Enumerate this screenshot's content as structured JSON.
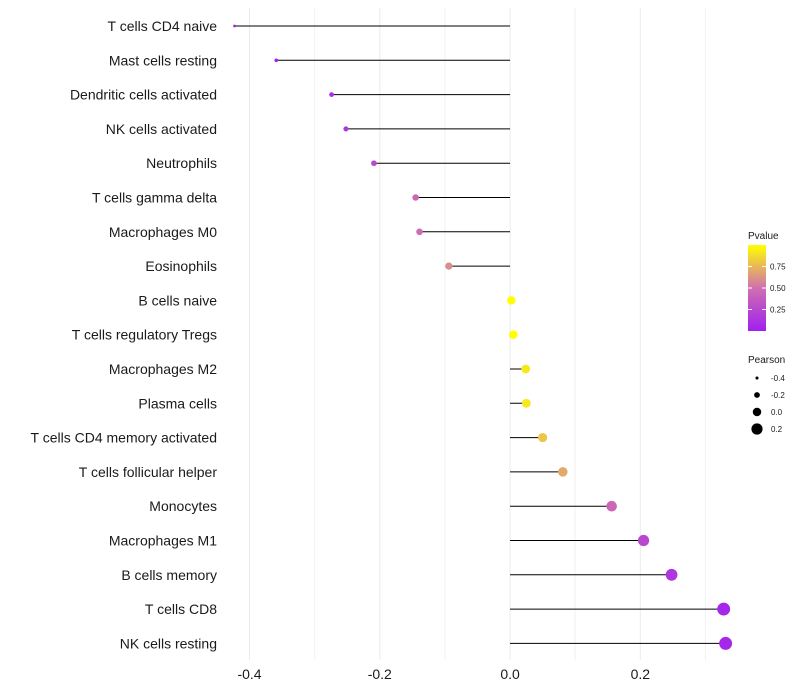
{
  "chart_data": {
    "type": "lollipop",
    "title": "",
    "xlabel": "",
    "ylabel": "",
    "xlim": [
      -0.43,
      0.35
    ],
    "x_ticks": [
      -0.4,
      -0.2,
      0.0,
      0.2
    ],
    "x_tick_labels": [
      "-0.4",
      "-0.2",
      "0.0",
      "0.2"
    ],
    "grid": "vertical",
    "categories": [
      "T cells CD4 naive",
      "Mast cells resting",
      "Dendritic cells activated",
      "NK cells activated",
      "Neutrophils",
      "T cells gamma delta",
      "Macrophages M0",
      "Eosinophils",
      "B cells naive",
      "T cells regulatory  Tregs",
      "Macrophages M2",
      "Plasma cells",
      "T cells CD4 memory activated",
      "T cells follicular helper",
      "Monocytes",
      "Macrophages M1",
      "B cells memory",
      "T cells CD8",
      "NK cells resting"
    ],
    "pearson": [
      -0.423,
      -0.359,
      -0.274,
      -0.252,
      -0.209,
      -0.145,
      -0.139,
      -0.094,
      0.002,
      0.005,
      0.024,
      0.025,
      0.05,
      0.081,
      0.156,
      0.205,
      0.248,
      0.328,
      0.331
    ],
    "pvalue": [
      0.0001,
      0.002,
      0.1,
      0.15,
      0.25,
      0.45,
      0.47,
      0.6,
      1.0,
      1.0,
      0.92,
      0.92,
      0.8,
      0.7,
      0.45,
      0.25,
      0.15,
      0.05,
      0.05
    ],
    "color_legend": {
      "title": "Pvalue",
      "range": [
        0.0,
        1.0
      ],
      "ticks": [
        0.25,
        0.5,
        0.75
      ],
      "tick_labels": [
        "0.25",
        "0.50",
        "0.75"
      ],
      "low_color": "#a020f0",
      "mid_color": "#d070b0",
      "high_color": "#ffff00"
    },
    "size_legend": {
      "title": "Pearson",
      "values": [
        -0.4,
        -0.2,
        0.0,
        0.2
      ],
      "labels": [
        "-0.4",
        "-0.2",
        "0.0",
        "0.2"
      ]
    },
    "legend_position": "right"
  }
}
